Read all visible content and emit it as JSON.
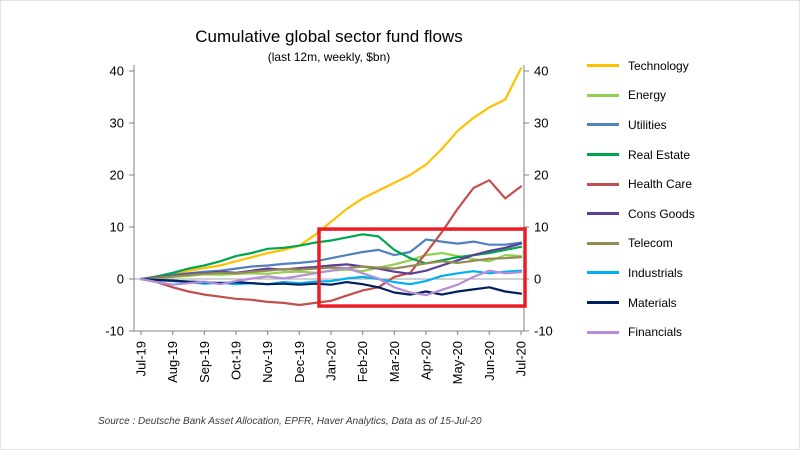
{
  "title": "Cumulative global sector fund flows",
  "subtitle": "(last 12m, weekly, $bn)",
  "source": "Source : Deutsche Bank Asset Allocation, EPFR, Haver Analytics, Data as of 15-Jul-20",
  "chart_data": {
    "type": "line",
    "title": "Cumulative global sector fund flows",
    "subtitle": "(last 12m, weekly, $bn)",
    "x_labels": [
      "Jul-19",
      "Aug-19",
      "Sep-19",
      "Oct-19",
      "Nov-19",
      "Dec-19",
      "Jan-20",
      "Feb-20",
      "Mar-20",
      "Apr-20",
      "May-20",
      "Jun-20",
      "Jul-20"
    ],
    "points_per_label_interval": 2,
    "ylim": [
      -10,
      40
    ],
    "yticks": [
      -10,
      0,
      10,
      20,
      30,
      40
    ],
    "grid": false,
    "legend_position": "right",
    "axis_color": "#808080",
    "zero_line_color": "#a6a6a6",
    "series": [
      {
        "name": "Technology",
        "color": "#FFC000",
        "values": [
          0,
          0.4,
          1.0,
          1.6,
          2.1,
          2.6,
          3.4,
          4.2,
          5.0,
          5.6,
          6.4,
          8.5,
          11.0,
          13.5,
          15.5,
          17.0,
          18.5,
          20.0,
          22.0,
          25.0,
          28.5,
          31.0,
          33.0,
          34.5,
          40.5
        ]
      },
      {
        "name": "Energy",
        "color": "#92D050",
        "values": [
          0,
          0.2,
          0.4,
          0.6,
          0.9,
          0.8,
          1.0,
          1.1,
          1.0,
          1.3,
          1.4,
          1.2,
          1.6,
          1.8,
          1.5,
          2.2,
          2.8,
          3.6,
          4.6,
          5.0,
          4.4,
          3.8,
          3.4,
          4.6,
          4.4
        ]
      },
      {
        "name": "Utilities",
        "color": "#4E81BD",
        "values": [
          0,
          0.3,
          0.8,
          1.1,
          1.4,
          1.6,
          2.0,
          2.4,
          2.6,
          2.9,
          3.1,
          3.4,
          4.0,
          4.6,
          5.2,
          5.6,
          4.6,
          5.2,
          7.6,
          7.2,
          6.8,
          7.2,
          6.6,
          6.6,
          7.0
        ]
      },
      {
        "name": "Real Estate",
        "color": "#00A550",
        "values": [
          0,
          0.5,
          1.2,
          2.0,
          2.6,
          3.4,
          4.4,
          5.0,
          5.8,
          6.0,
          6.4,
          7.0,
          7.4,
          8.0,
          8.6,
          8.2,
          5.6,
          4.0,
          3.0,
          3.6,
          4.2,
          4.6,
          5.0,
          5.6,
          6.2
        ]
      },
      {
        "name": "Health Care",
        "color": "#C0504D",
        "values": [
          0,
          -0.6,
          -1.6,
          -2.4,
          -3.0,
          -3.4,
          -3.8,
          -4.0,
          -4.4,
          -4.6,
          -5.0,
          -4.6,
          -4.2,
          -3.2,
          -2.2,
          -1.6,
          0.4,
          1.2,
          5.0,
          9.0,
          13.5,
          17.5,
          19.0,
          15.5,
          17.8
        ]
      },
      {
        "name": "Cons Goods",
        "color": "#5C3E99",
        "values": [
          0,
          0.3,
          0.6,
          1.0,
          1.1,
          1.4,
          1.2,
          1.6,
          2.0,
          1.8,
          2.1,
          2.3,
          2.6,
          2.8,
          2.4,
          2.0,
          1.4,
          1.0,
          1.6,
          2.6,
          3.6,
          4.6,
          5.4,
          6.0,
          6.8
        ]
      },
      {
        "name": "Telecom",
        "color": "#948A54",
        "values": [
          0,
          0.2,
          0.5,
          0.8,
          1.0,
          1.2,
          1.1,
          1.4,
          1.6,
          1.9,
          1.8,
          2.0,
          2.2,
          2.1,
          2.4,
          2.2,
          2.0,
          2.5,
          3.0,
          3.4,
          3.1,
          3.5,
          3.9,
          4.0,
          4.2
        ]
      },
      {
        "name": "Industrials",
        "color": "#00B0F0",
        "values": [
          0,
          -0.2,
          -0.4,
          -0.6,
          -0.9,
          -0.7,
          -1.0,
          -0.8,
          -1.0,
          -0.6,
          -0.8,
          -0.5,
          -0.4,
          0.1,
          0.4,
          0.0,
          -0.6,
          -1.0,
          -0.4,
          0.6,
          1.1,
          1.5,
          1.1,
          1.4,
          1.6
        ]
      },
      {
        "name": "Materials",
        "color": "#002060",
        "values": [
          0,
          -0.2,
          -0.3,
          -0.5,
          -0.6,
          -0.8,
          -0.6,
          -0.8,
          -1.0,
          -0.9,
          -1.1,
          -0.9,
          -1.1,
          -0.6,
          -1.0,
          -1.6,
          -2.6,
          -3.0,
          -2.4,
          -3.0,
          -2.4,
          -2.0,
          -1.6,
          -2.4,
          -2.8
        ]
      },
      {
        "name": "Financials",
        "color": "#B48CD8",
        "values": [
          0,
          -0.6,
          -1.1,
          -0.8,
          -0.5,
          -1.0,
          -0.4,
          0.1,
          0.5,
          0.1,
          0.6,
          1.1,
          1.6,
          2.1,
          1.1,
          0.1,
          -1.6,
          -2.6,
          -3.1,
          -2.1,
          -1.1,
          0.4,
          1.6,
          1.1,
          1.3
        ]
      }
    ],
    "highlight_box": {
      "x_start_label": "Jan-20",
      "x_end_label": "Jul-20",
      "y_min": -5.2,
      "y_max": 9.6,
      "color": "#ED1C24"
    }
  }
}
